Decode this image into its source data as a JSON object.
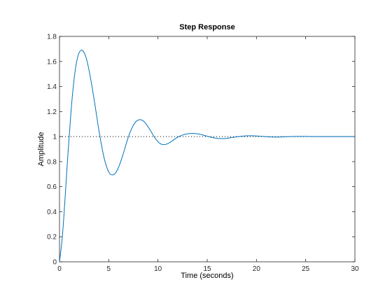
{
  "chart_data": {
    "type": "line",
    "title": "Step Response",
    "xlabel": "Time (seconds)",
    "ylabel": "Amplitude",
    "xlim": [
      0,
      30
    ],
    "ylim": [
      0,
      1.8
    ],
    "xticks": [
      "0",
      "5",
      "10",
      "15",
      "20",
      "25",
      "30"
    ],
    "yticks": [
      "0",
      "0.2",
      "0.4",
      "0.6",
      "0.8",
      "1",
      "1.2",
      "1.4",
      "1.6",
      "1.8"
    ],
    "grid": false,
    "legend": "none",
    "series": [
      {
        "color": "#0072bd",
        "x": [
          0,
          0.3,
          0.6,
          0.9,
          1.2,
          1.5,
          1.8,
          2.1,
          2.4,
          2.7,
          3.0,
          3.3,
          3.6,
          3.9,
          4.2,
          4.5,
          4.8,
          5.1,
          5.4,
          5.7,
          6.0,
          6.3,
          6.6,
          6.9,
          7.2,
          7.5,
          7.8,
          8.1,
          8.4,
          8.7,
          9.0,
          9.3,
          9.6,
          9.9,
          10.2,
          10.5,
          10.8,
          11.1,
          11.4,
          11.7,
          12.0,
          12.5,
          13.0,
          13.5,
          14.0,
          14.5,
          15.0,
          15.5,
          16.0,
          16.5,
          17.0,
          17.5,
          18.0,
          18.5,
          19.0,
          19.5,
          20.0,
          20.5,
          21.0,
          21.5,
          22.0,
          22.5,
          23.0,
          23.5,
          24.0,
          25.0,
          26.0,
          27.0,
          28.0,
          29.0,
          30.0
        ],
        "y": [
          0,
          0.21,
          0.55,
          0.91,
          1.23,
          1.47,
          1.62,
          1.684,
          1.682,
          1.63,
          1.53,
          1.4,
          1.255,
          1.1,
          0.96,
          0.84,
          0.755,
          0.705,
          0.694,
          0.71,
          0.755,
          0.82,
          0.895,
          0.975,
          1.04,
          1.09,
          1.122,
          1.135,
          1.13,
          1.11,
          1.078,
          1.04,
          1.0,
          0.968,
          0.945,
          0.936,
          0.938,
          0.948,
          0.963,
          0.98,
          0.995,
          1.012,
          1.022,
          1.025,
          1.022,
          1.014,
          1.003,
          0.993,
          0.986,
          0.984,
          0.986,
          0.992,
          0.998,
          1.003,
          1.006,
          1.007,
          1.005,
          1.002,
          0.999,
          0.997,
          0.996,
          0.997,
          0.999,
          1.0,
          1.001,
          1.001,
          1.0,
          1.0,
          1.0,
          1.0,
          1.0
        ]
      }
    ],
    "reference_line": {
      "y": 1,
      "style": "dotted",
      "color": "#000000"
    }
  }
}
